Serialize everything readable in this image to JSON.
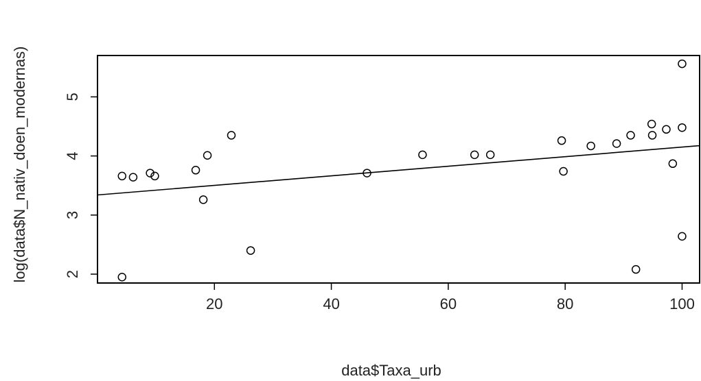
{
  "chart_data": {
    "type": "scatter",
    "title": "",
    "xlabel": "data$Taxa_urb",
    "ylabel": "log(data$N_nativ_doen_modernas)",
    "xlim": [
      0,
      103
    ],
    "ylim": [
      1.85,
      5.7
    ],
    "xticks": [
      20,
      40,
      60,
      80,
      100
    ],
    "yticks": [
      2,
      3,
      4,
      5
    ],
    "grid": false,
    "legend": "none",
    "points": [
      {
        "x": 4.2,
        "y": 3.66
      },
      {
        "x": 6.1,
        "y": 3.64
      },
      {
        "x": 9.0,
        "y": 3.71
      },
      {
        "x": 9.8,
        "y": 3.66
      },
      {
        "x": 16.8,
        "y": 3.76
      },
      {
        "x": 18.1,
        "y": 3.26
      },
      {
        "x": 18.8,
        "y": 4.01
      },
      {
        "x": 22.9,
        "y": 4.35
      },
      {
        "x": 26.2,
        "y": 2.4
      },
      {
        "x": 4.2,
        "y": 1.95
      },
      {
        "x": 46.1,
        "y": 3.71
      },
      {
        "x": 55.6,
        "y": 4.02
      },
      {
        "x": 64.5,
        "y": 4.02
      },
      {
        "x": 67.2,
        "y": 4.02
      },
      {
        "x": 79.4,
        "y": 4.26
      },
      {
        "x": 79.7,
        "y": 3.74
      },
      {
        "x": 84.4,
        "y": 4.17
      },
      {
        "x": 88.8,
        "y": 4.21
      },
      {
        "x": 91.2,
        "y": 4.35
      },
      {
        "x": 92.1,
        "y": 2.08
      },
      {
        "x": 94.8,
        "y": 4.54
      },
      {
        "x": 94.9,
        "y": 4.35
      },
      {
        "x": 97.3,
        "y": 4.45
      },
      {
        "x": 98.4,
        "y": 3.87
      },
      {
        "x": 100.0,
        "y": 4.48
      },
      {
        "x": 100.0,
        "y": 5.56
      },
      {
        "x": 100.0,
        "y": 2.64
      }
    ],
    "regression_line": {
      "slope": 0.0081,
      "intercept": 3.34
    },
    "colors": {
      "points": "#000000",
      "line": "#000000",
      "axis": "#000000",
      "text": "#222222"
    }
  }
}
